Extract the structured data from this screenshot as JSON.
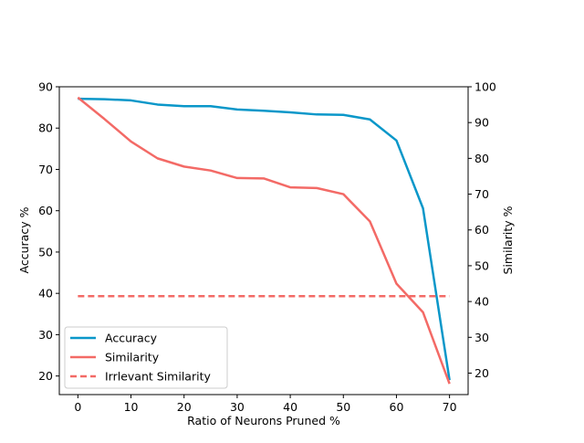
{
  "chart_data": {
    "type": "line",
    "xlabel": "Ratio of Neurons Pruned %",
    "ylabel_left": "Accuracy %",
    "ylabel_right": "Similarity %",
    "xlim": [
      -3.5,
      73.5
    ],
    "ylim_left": [
      15.5,
      90
    ],
    "ylim_right": [
      14,
      100
    ],
    "x_ticks": [
      0,
      10,
      20,
      30,
      40,
      50,
      60,
      70
    ],
    "y_ticks_left": [
      20,
      30,
      40,
      50,
      60,
      70,
      80,
      90
    ],
    "y_ticks_right": [
      20,
      30,
      40,
      50,
      60,
      70,
      80,
      90,
      100
    ],
    "grid": false,
    "legend_position": "lower-left",
    "series": [
      {
        "name": "Accuracy",
        "axis": "left",
        "color": "#0a97c9",
        "style": "solid",
        "x": [
          0,
          5,
          10,
          15,
          20,
          25,
          30,
          35,
          40,
          45,
          50,
          55,
          60,
          65,
          70
        ],
        "y": [
          87.1,
          87.0,
          86.7,
          85.7,
          85.3,
          85.3,
          84.5,
          84.2,
          83.8,
          83.3,
          83.2,
          82.1,
          77.0,
          60.6,
          19.0
        ]
      },
      {
        "name": "Similarity",
        "axis": "right",
        "color": "#f36a66",
        "style": "solid",
        "x": [
          0,
          5,
          10,
          15,
          20,
          25,
          30,
          35,
          40,
          45,
          50,
          55,
          60,
          65,
          70
        ],
        "y": [
          97.0,
          91.0,
          84.7,
          80.0,
          77.7,
          76.6,
          74.5,
          74.4,
          71.9,
          71.7,
          70.0,
          62.4,
          45.0,
          37.0,
          17.0
        ]
      },
      {
        "name": "Irrlevant Similarity",
        "axis": "right",
        "color": "#f36a66",
        "style": "dashed",
        "x": [
          0,
          70
        ],
        "y": [
          41.5,
          41.5
        ]
      }
    ]
  }
}
